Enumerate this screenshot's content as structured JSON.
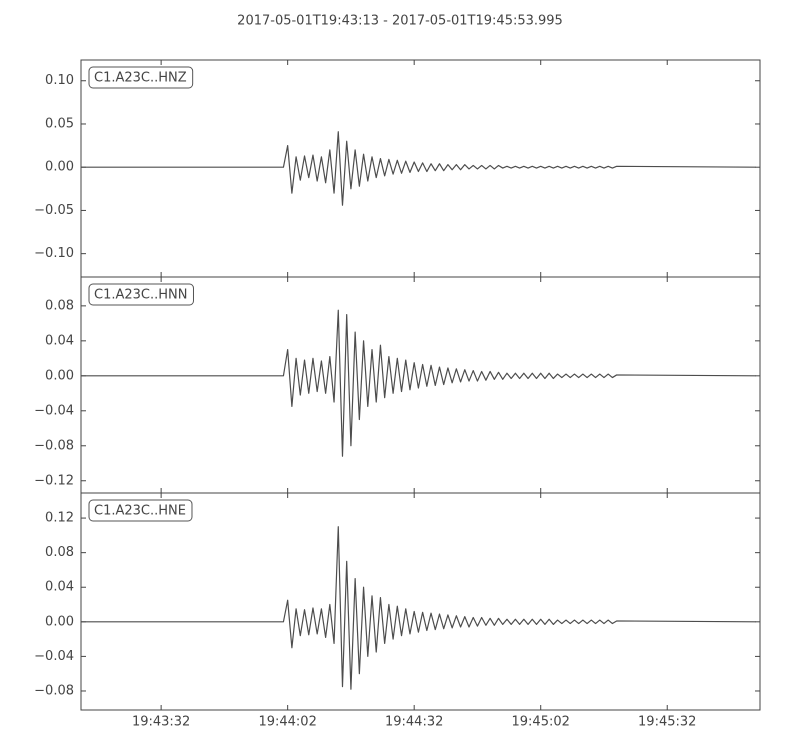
{
  "title": "2017-05-01T19:43:13  -  2017-05-01T19:45:53.995",
  "chart_data": [
    {
      "type": "line",
      "xlim": [
        70993,
        71153.995
      ],
      "ylim": [
        -0.127,
        0.124
      ],
      "yticks": [
        {
          "value": -0.1,
          "label": "−0.10"
        },
        {
          "value": -0.05,
          "label": "−0.05"
        },
        {
          "value": 0,
          "label": "0.00"
        },
        {
          "value": 0.05,
          "label": "0.05"
        },
        {
          "value": 0.1,
          "label": "0.10"
        }
      ],
      "x": [
        70993,
        71041,
        71042,
        71043,
        71044,
        71045,
        71046,
        71047,
        71048,
        71049,
        71050,
        71051,
        71052,
        71053,
        71054,
        71055,
        71056,
        71057,
        71058,
        71059,
        71060,
        71061,
        71062,
        71063,
        71064,
        71065,
        71066,
        71067,
        71068,
        71069,
        71070,
        71071,
        71072,
        71073,
        71074,
        71075,
        71076,
        71077,
        71078,
        71079,
        71080,
        71081,
        71082,
        71083,
        71084,
        71085,
        71086,
        71087,
        71088,
        71089,
        71090,
        71091,
        71092,
        71093,
        71094,
        71095,
        71096,
        71097,
        71098,
        71099,
        71100,
        71101,
        71102,
        71103,
        71104,
        71105,
        71106,
        71107,
        71108,
        71109,
        71110,
        71111,
        71112,
        71113,
        71114,
        71115,
        71116,
        71117,
        71118,
        71119,
        71120,
        71153
      ],
      "series": [
        {
          "name": "C1.A23C..HNZ",
          "color": "#4d4d4d",
          "values": [
            0,
            0,
            0.025,
            -0.03,
            0.012,
            -0.015,
            0.013,
            -0.012,
            0.014,
            -0.016,
            0.012,
            -0.018,
            0.02,
            -0.03,
            0.041,
            -0.044,
            0.03,
            -0.025,
            0.02,
            -0.022,
            0.015,
            -0.016,
            0.012,
            -0.012,
            0.01,
            -0.01,
            0.009,
            -0.008,
            0.008,
            -0.007,
            0.007,
            -0.006,
            0.006,
            -0.005,
            0.005,
            -0.005,
            0.004,
            -0.004,
            0.004,
            -0.004,
            0.003,
            -0.003,
            0.003,
            -0.003,
            0.003,
            -0.002,
            0.002,
            -0.002,
            0.002,
            -0.002,
            0.002,
            -0.002,
            0.002,
            -0.001,
            0.001,
            -0.001,
            0.001,
            -0.001,
            0.001,
            -0.001,
            0.001,
            -0.001,
            0.001,
            -0.001,
            0.001,
            -0.001,
            0.001,
            -0.001,
            0.001,
            -0.001,
            0.001,
            -0.001,
            0.001,
            -0.001,
            0.001,
            -0.001,
            0.001,
            -0.001,
            0.001,
            -0.001,
            0.001,
            0
          ]
        }
      ]
    },
    {
      "type": "line",
      "xlim": [
        70993,
        71153.995
      ],
      "ylim": [
        -0.134,
        0.113
      ],
      "yticks": [
        {
          "value": -0.12,
          "label": "−0.12"
        },
        {
          "value": -0.08,
          "label": "−0.08"
        },
        {
          "value": -0.04,
          "label": "−0.04"
        },
        {
          "value": 0,
          "label": "0.00"
        },
        {
          "value": 0.04,
          "label": "0.04"
        },
        {
          "value": 0.08,
          "label": "0.08"
        }
      ],
      "x": [
        70993,
        71041,
        71042,
        71043,
        71044,
        71045,
        71046,
        71047,
        71048,
        71049,
        71050,
        71051,
        71052,
        71053,
        71054,
        71055,
        71056,
        71057,
        71058,
        71059,
        71060,
        71061,
        71062,
        71063,
        71064,
        71065,
        71066,
        71067,
        71068,
        71069,
        71070,
        71071,
        71072,
        71073,
        71074,
        71075,
        71076,
        71077,
        71078,
        71079,
        71080,
        71081,
        71082,
        71083,
        71084,
        71085,
        71086,
        71087,
        71088,
        71089,
        71090,
        71091,
        71092,
        71093,
        71094,
        71095,
        71096,
        71097,
        71098,
        71099,
        71100,
        71101,
        71102,
        71103,
        71104,
        71105,
        71106,
        71107,
        71108,
        71109,
        71110,
        71111,
        71112,
        71113,
        71114,
        71115,
        71116,
        71117,
        71118,
        71119,
        71120,
        71153
      ],
      "series": [
        {
          "name": "C1.A23C..HNN",
          "color": "#4d4d4d",
          "values": [
            0,
            0,
            0.03,
            -0.035,
            0.02,
            -0.022,
            0.018,
            -0.02,
            0.02,
            -0.018,
            0.017,
            -0.02,
            0.022,
            -0.03,
            0.075,
            -0.092,
            0.07,
            -0.08,
            0.05,
            -0.05,
            0.04,
            -0.035,
            0.03,
            -0.03,
            0.035,
            -0.025,
            0.022,
            -0.02,
            0.02,
            -0.018,
            0.018,
            -0.016,
            0.015,
            -0.014,
            0.013,
            -0.012,
            0.012,
            -0.011,
            0.01,
            -0.01,
            0.009,
            -0.008,
            0.008,
            -0.007,
            0.007,
            -0.006,
            0.006,
            -0.006,
            0.005,
            -0.005,
            0.005,
            -0.004,
            0.004,
            -0.004,
            0.003,
            -0.003,
            0.003,
            -0.003,
            0.003,
            -0.003,
            0.003,
            -0.003,
            0.003,
            -0.003,
            0.003,
            -0.003,
            0.002,
            -0.002,
            0.002,
            -0.002,
            0.002,
            -0.002,
            0.002,
            -0.002,
            0.002,
            -0.002,
            0.002,
            -0.002,
            0.002,
            -0.002,
            0.001,
            0
          ]
        }
      ]
    },
    {
      "type": "line",
      "xlim": [
        70993,
        71153.995
      ],
      "ylim": [
        -0.102,
        0.149
      ],
      "yticks": [
        {
          "value": -0.08,
          "label": "−0.08"
        },
        {
          "value": -0.04,
          "label": "−0.04"
        },
        {
          "value": 0,
          "label": "0.00"
        },
        {
          "value": 0.04,
          "label": "0.04"
        },
        {
          "value": 0.08,
          "label": "0.08"
        },
        {
          "value": 0.12,
          "label": "0.12"
        }
      ],
      "xticks": [
        {
          "value": 71012,
          "label": "19:43:32"
        },
        {
          "value": 71042,
          "label": "19:44:02"
        },
        {
          "value": 71072,
          "label": "19:44:32"
        },
        {
          "value": 71102,
          "label": "19:45:02"
        },
        {
          "value": 71132,
          "label": "19:45:32"
        }
      ],
      "x": [
        70993,
        71041,
        71042,
        71043,
        71044,
        71045,
        71046,
        71047,
        71048,
        71049,
        71050,
        71051,
        71052,
        71053,
        71054,
        71055,
        71056,
        71057,
        71058,
        71059,
        71060,
        71061,
        71062,
        71063,
        71064,
        71065,
        71066,
        71067,
        71068,
        71069,
        71070,
        71071,
        71072,
        71073,
        71074,
        71075,
        71076,
        71077,
        71078,
        71079,
        71080,
        71081,
        71082,
        71083,
        71084,
        71085,
        71086,
        71087,
        71088,
        71089,
        71090,
        71091,
        71092,
        71093,
        71094,
        71095,
        71096,
        71097,
        71098,
        71099,
        71100,
        71101,
        71102,
        71103,
        71104,
        71105,
        71106,
        71107,
        71108,
        71109,
        71110,
        71111,
        71112,
        71113,
        71114,
        71115,
        71116,
        71117,
        71118,
        71119,
        71120,
        71153
      ],
      "series": [
        {
          "name": "C1.A23C..HNE",
          "color": "#4d4d4d",
          "values": [
            0,
            0,
            0.025,
            -0.03,
            0.015,
            -0.016,
            0.014,
            -0.015,
            0.016,
            -0.014,
            0.015,
            -0.018,
            0.02,
            -0.025,
            0.11,
            -0.075,
            0.07,
            -0.078,
            0.05,
            -0.06,
            0.04,
            -0.04,
            0.03,
            -0.035,
            0.028,
            -0.025,
            0.02,
            -0.02,
            0.018,
            -0.016,
            0.015,
            -0.014,
            0.012,
            -0.012,
            0.011,
            -0.01,
            0.01,
            -0.009,
            0.009,
            -0.008,
            0.008,
            -0.007,
            0.007,
            -0.006,
            0.006,
            -0.006,
            0.005,
            -0.005,
            0.005,
            -0.004,
            0.004,
            -0.004,
            0.004,
            -0.003,
            0.003,
            -0.003,
            0.003,
            -0.003,
            0.003,
            -0.003,
            0.003,
            -0.003,
            0.003,
            -0.003,
            0.003,
            -0.003,
            0.002,
            -0.002,
            0.002,
            -0.002,
            0.002,
            -0.002,
            0.002,
            -0.002,
            0.002,
            -0.002,
            0.002,
            -0.002,
            0.002,
            -0.002,
            0.001,
            0
          ]
        }
      ]
    }
  ]
}
